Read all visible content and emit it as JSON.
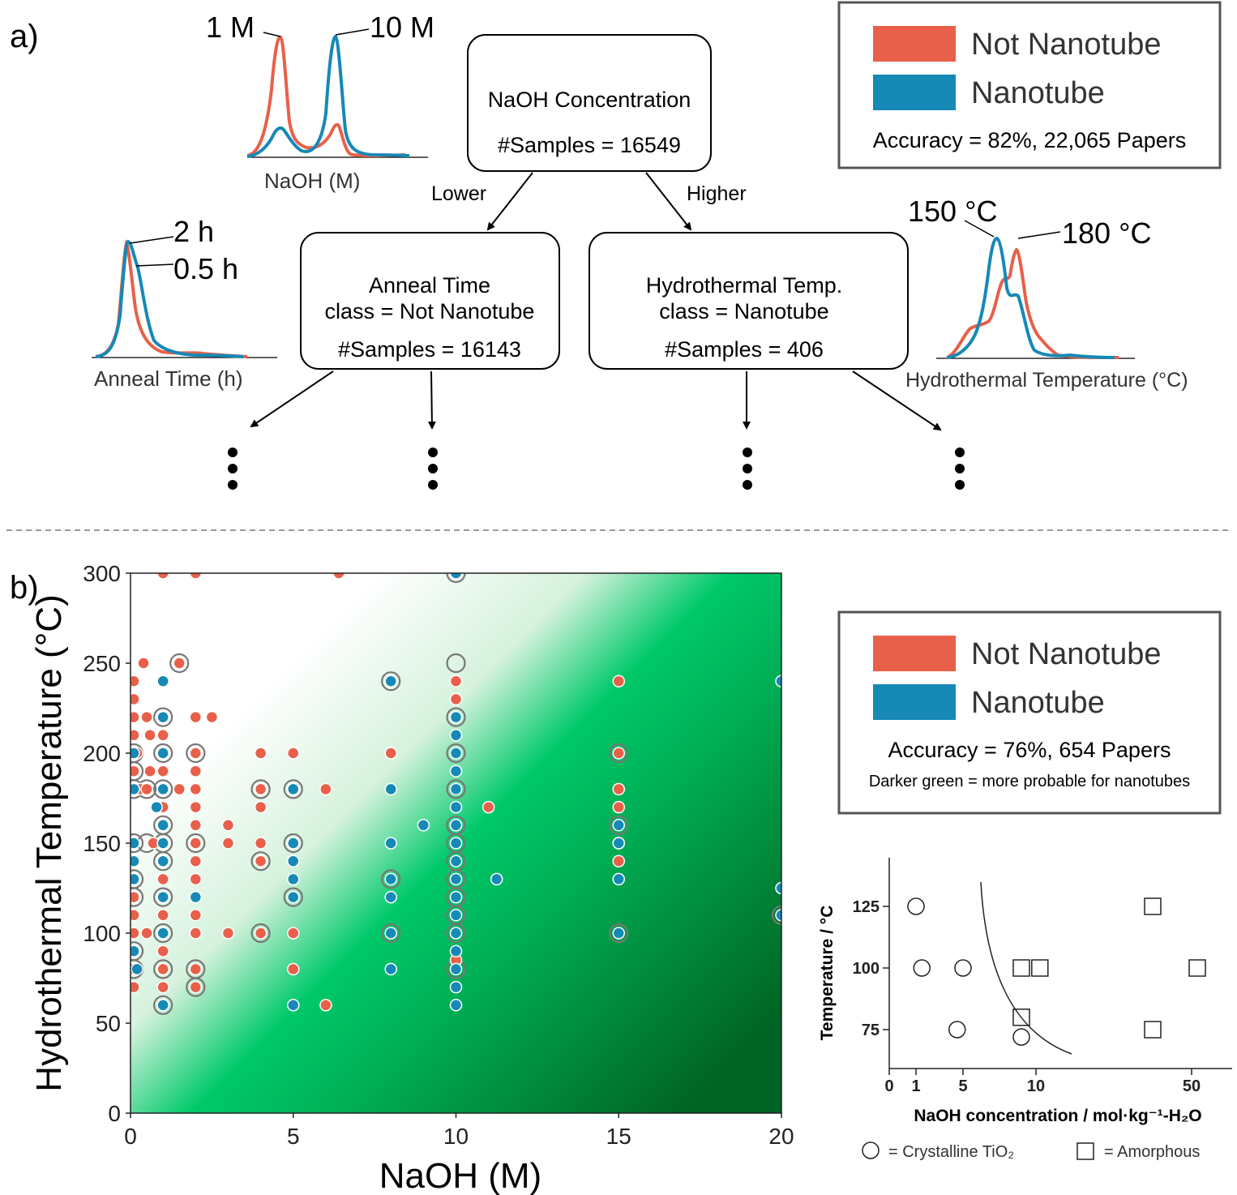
{
  "panel_a": {
    "label": "a)",
    "tree": {
      "root": {
        "title": "NaOH Concentration",
        "samples": "#Samples = 16549"
      },
      "left_edge_label": "Lower",
      "right_edge_label": "Higher",
      "left": {
        "title": "Anneal Time",
        "cls": "class = Not Nanotube",
        "samples": "#Samples = 16143"
      },
      "right": {
        "title": "Hydrothermal Temp.",
        "cls": "class = Nanotube",
        "samples": "#Samples = 406"
      }
    },
    "legend": {
      "not_nanotube": "Not Nanotube",
      "nanotube": "Nanotube",
      "accuracy": "Accuracy = 82%, 22,065 Papers"
    },
    "mini_plots": [
      {
        "id": "naoh",
        "xlabel": "NaOH (M)",
        "peak_labels": [
          "1 M",
          "10 M"
        ]
      },
      {
        "id": "anneal",
        "xlabel": "Anneal Time (h)",
        "peak_labels": [
          "2 h",
          "0.5 h"
        ]
      },
      {
        "id": "hydro",
        "xlabel": "Hydrothermal Temperature (°C)",
        "peak_labels": [
          "150 °C",
          "180 °C"
        ]
      }
    ]
  },
  "panel_b": {
    "label": "b)",
    "legend": {
      "not_nanotube": "Not Nanotube",
      "nanotube": "Nanotube",
      "accuracy": "Accuracy = 76%, 654 Papers",
      "note": "Darker green = more probable for nanotubes"
    },
    "inset": {
      "xlabel": "NaOH  concentration / mol·kg⁻¹-H₂O",
      "ylabel": "Temperature / °C",
      "x_ticks": [
        "0",
        "1",
        "5",
        "10",
        "50"
      ],
      "y_ticks": [
        "125",
        "100",
        "75"
      ],
      "key_crystalline": "= Crystalline TiO₂",
      "key_amorphous": "= Amorphous",
      "circles": [
        [
          1,
          125
        ],
        [
          1.5,
          100
        ],
        [
          5,
          100
        ],
        [
          4.5,
          75
        ],
        [
          9,
          72
        ]
      ],
      "squares": [
        [
          9,
          100
        ],
        [
          11,
          100
        ],
        [
          9,
          80
        ],
        [
          40,
          125
        ],
        [
          52,
          100
        ],
        [
          40,
          75
        ]
      ]
    }
  },
  "colors": {
    "not_nanotube": "#e8604a",
    "nanotube": "#1689b6",
    "green_light": "#ffffff",
    "green_mid": "#00c96a",
    "green_dark": "#006a28"
  },
  "chart_data": {
    "type": "scatter",
    "xlabel": "NaOH (M)",
    "ylabel": "Hydrothermal Temperature (°C)",
    "xlim": [
      0,
      20
    ],
    "ylim": [
      0,
      300
    ],
    "x_ticks": [
      0,
      5,
      10,
      15,
      20
    ],
    "y_ticks": [
      0,
      50,
      100,
      150,
      200,
      250,
      300
    ],
    "series": [
      {
        "name": "Not Nanotube",
        "points": [
          [
            1,
            300
          ],
          [
            2,
            300
          ],
          [
            6.4,
            300
          ],
          [
            0.4,
            250
          ],
          [
            1.5,
            250
          ],
          [
            0.1,
            240
          ],
          [
            10,
            240
          ],
          [
            15,
            240
          ],
          [
            0.1,
            230
          ],
          [
            10,
            230
          ],
          [
            0.1,
            220
          ],
          [
            0.5,
            220
          ],
          [
            2,
            220
          ],
          [
            2.5,
            220
          ],
          [
            0.1,
            210
          ],
          [
            0.6,
            210
          ],
          [
            1,
            210
          ],
          [
            0.2,
            200
          ],
          [
            1,
            200
          ],
          [
            2,
            200
          ],
          [
            4,
            200
          ],
          [
            5,
            200
          ],
          [
            8,
            200
          ],
          [
            15,
            200
          ],
          [
            0.1,
            190
          ],
          [
            0.6,
            190
          ],
          [
            1,
            190
          ],
          [
            2,
            190
          ],
          [
            0.3,
            180
          ],
          [
            0.5,
            180
          ],
          [
            1.5,
            180
          ],
          [
            2,
            180
          ],
          [
            4,
            180
          ],
          [
            6,
            180
          ],
          [
            15,
            180
          ],
          [
            1,
            170
          ],
          [
            2,
            170
          ],
          [
            4,
            170
          ],
          [
            11,
            170
          ],
          [
            15,
            170
          ],
          [
            1,
            160
          ],
          [
            2,
            160
          ],
          [
            3,
            160
          ],
          [
            0.1,
            150
          ],
          [
            0.7,
            150
          ],
          [
            1,
            150
          ],
          [
            2,
            150
          ],
          [
            3,
            150
          ],
          [
            4,
            150
          ],
          [
            15,
            150
          ],
          [
            1,
            140
          ],
          [
            2,
            140
          ],
          [
            4,
            140
          ],
          [
            15,
            140
          ],
          [
            0.1,
            130
          ],
          [
            1,
            130
          ],
          [
            2,
            130
          ],
          [
            0.1,
            120
          ],
          [
            1,
            120
          ],
          [
            0.1,
            110
          ],
          [
            1,
            110
          ],
          [
            2,
            110
          ],
          [
            0.1,
            100
          ],
          [
            0.5,
            100
          ],
          [
            1,
            100
          ],
          [
            2,
            100
          ],
          [
            3,
            100
          ],
          [
            4,
            100
          ],
          [
            5,
            100
          ],
          [
            0.1,
            90
          ],
          [
            1,
            90
          ],
          [
            0.1,
            80
          ],
          [
            1,
            80
          ],
          [
            2,
            80
          ],
          [
            5,
            80
          ],
          [
            10,
            85
          ],
          [
            0.1,
            70
          ],
          [
            1,
            70
          ],
          [
            2,
            70
          ],
          [
            6,
            60
          ],
          [
            10,
            160
          ]
        ]
      },
      {
        "name": "Nanotube",
        "points": [
          [
            10,
            300
          ],
          [
            1,
            240
          ],
          [
            8,
            240
          ],
          [
            10,
            220
          ],
          [
            1,
            220
          ],
          [
            10,
            210
          ],
          [
            0.1,
            200
          ],
          [
            1,
            200
          ],
          [
            10,
            200
          ],
          [
            10,
            190
          ],
          [
            0.1,
            180
          ],
          [
            1,
            180
          ],
          [
            5,
            180
          ],
          [
            8,
            180
          ],
          [
            10,
            180
          ],
          [
            0.8,
            170
          ],
          [
            10,
            170
          ],
          [
            10,
            160
          ],
          [
            9,
            160
          ],
          [
            1,
            160
          ],
          [
            15,
            160
          ],
          [
            0.1,
            150
          ],
          [
            1,
            150
          ],
          [
            5,
            150
          ],
          [
            8,
            150
          ],
          [
            10,
            150
          ],
          [
            15,
            150
          ],
          [
            1,
            140
          ],
          [
            5,
            140
          ],
          [
            10,
            140
          ],
          [
            0.1,
            130
          ],
          [
            5,
            130
          ],
          [
            8,
            130
          ],
          [
            10,
            130
          ],
          [
            11.25,
            130
          ],
          [
            15,
            130
          ],
          [
            2,
            120
          ],
          [
            1,
            120
          ],
          [
            5,
            120
          ],
          [
            8,
            120
          ],
          [
            10,
            120
          ],
          [
            20,
            125
          ],
          [
            10,
            110
          ],
          [
            20,
            110
          ],
          [
            0.1,
            90
          ],
          [
            1,
            100
          ],
          [
            8,
            100
          ],
          [
            10,
            100
          ],
          [
            15,
            100
          ],
          [
            10,
            90
          ],
          [
            0.2,
            80
          ],
          [
            8,
            80
          ],
          [
            10,
            80
          ],
          [
            10,
            70
          ],
          [
            1,
            60
          ],
          [
            5,
            60
          ],
          [
            10,
            60
          ],
          [
            20,
            240
          ],
          [
            0.1,
            140
          ]
        ]
      }
    ],
    "ringed_points": [
      [
        1,
        220
      ],
      [
        1.5,
        250
      ],
      [
        8,
        240
      ],
      [
        10,
        250
      ],
      [
        10,
        300
      ],
      [
        10,
        220
      ],
      [
        0.1,
        200
      ],
      [
        1,
        200
      ],
      [
        2,
        200
      ],
      [
        10,
        200
      ],
      [
        15,
        200
      ],
      [
        0.1,
        190
      ],
      [
        0.1,
        180
      ],
      [
        0.5,
        180
      ],
      [
        1,
        180
      ],
      [
        4,
        180
      ],
      [
        5,
        180
      ],
      [
        10,
        180
      ],
      [
        1,
        160
      ],
      [
        10,
        160
      ],
      [
        15,
        160
      ],
      [
        0.1,
        150
      ],
      [
        0.5,
        150
      ],
      [
        1,
        150
      ],
      [
        2,
        150
      ],
      [
        5,
        150
      ],
      [
        10,
        150
      ],
      [
        1,
        140
      ],
      [
        4,
        140
      ],
      [
        10,
        140
      ],
      [
        0.1,
        130
      ],
      [
        8,
        130
      ],
      [
        10,
        130
      ],
      [
        1,
        120
      ],
      [
        5,
        120
      ],
      [
        10,
        120
      ],
      [
        0.1,
        120
      ],
      [
        10,
        110
      ],
      [
        20,
        110
      ],
      [
        1,
        100
      ],
      [
        4,
        100
      ],
      [
        8,
        100
      ],
      [
        10,
        100
      ],
      [
        15,
        100
      ],
      [
        0.1,
        90
      ],
      [
        0.1,
        80
      ],
      [
        1,
        80
      ],
      [
        2,
        80
      ],
      [
        10,
        80
      ],
      [
        2,
        70
      ],
      [
        1,
        60
      ]
    ]
  }
}
